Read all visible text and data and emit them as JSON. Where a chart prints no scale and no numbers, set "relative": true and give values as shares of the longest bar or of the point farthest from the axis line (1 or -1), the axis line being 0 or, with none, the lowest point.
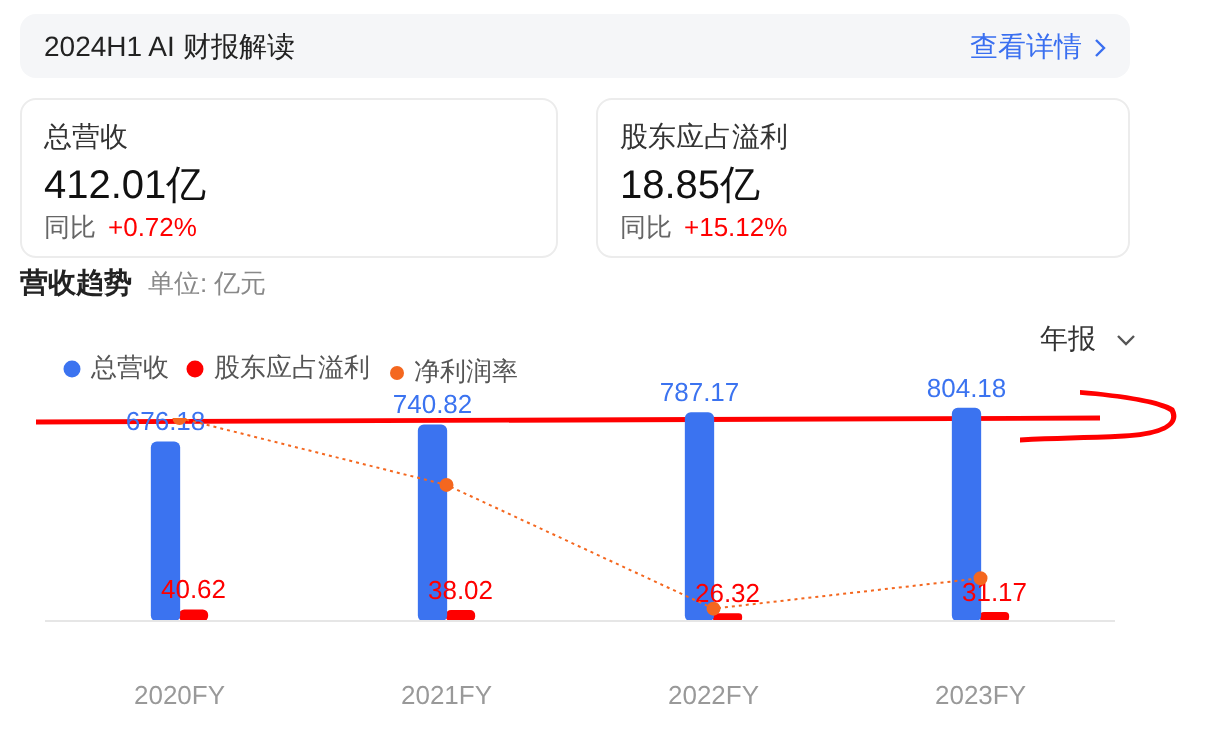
{
  "chart_data": [
    {
      "type": "other",
      "title": "2024H1 AI 财报解读",
      "annotations": [
        "查看详情"
      ]
    },
    {
      "type": "other",
      "title": "总营收",
      "annotations": [
        "412.01亿",
        "同比",
        "+0.72%"
      ]
    },
    {
      "type": "other",
      "title": "股东应占溢利",
      "annotations": [
        "18.85亿",
        "同比",
        "+15.12%"
      ]
    },
    {
      "type": "bar",
      "title": "营收趋势",
      "subtitle": "单位: 亿元",
      "annotations": [
        "年报"
      ],
      "categories": [
        "2020FY",
        "2021FY",
        "2022FY",
        "2023FY"
      ],
      "series": [
        {
          "name": "总营收",
          "color": "#3b73f0",
          "values": [
            676.18,
            740.82,
            787.17,
            804.18
          ]
        },
        {
          "name": "股东应占溢利",
          "color": "#fe0000",
          "values": [
            40.62,
            38.02,
            26.32,
            31.17
          ]
        }
      ],
      "data_labels": true,
      "grid": false,
      "legend": "top left",
      "tick_labels": "x"
    },
    {
      "type": "line",
      "relative": true,
      "categories": [
        null,
        null,
        null,
        null
      ],
      "series": [
        {
          "name": "净利润率",
          "color": "#f4671f",
          "line_style": "dotted",
          "marker": "circle",
          "values": [
            1,
            0.67,
            0.06,
            0.21
          ]
        }
      ],
      "grid": false,
      "legend": "top left",
      "tick_labels": false
    }
  ]
}
